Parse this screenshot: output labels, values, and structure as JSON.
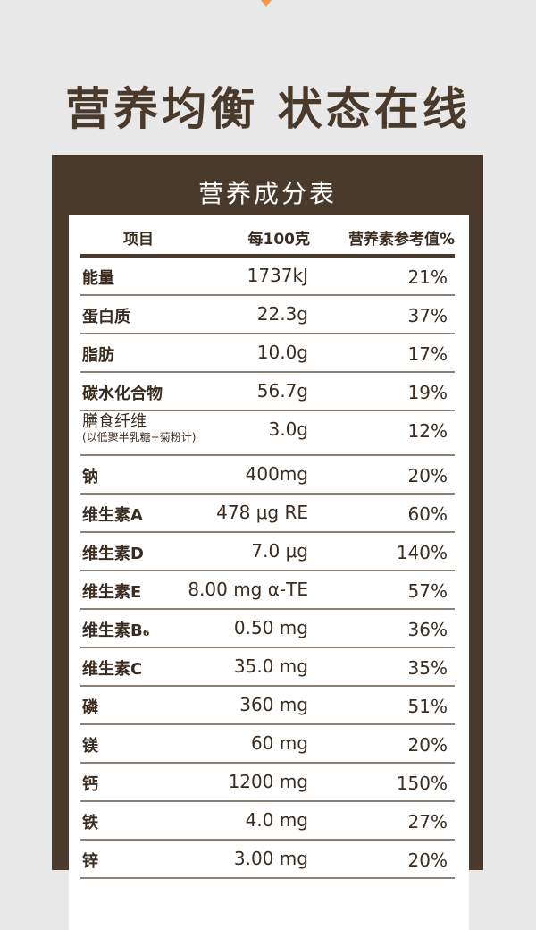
{
  "colors": {
    "background": "#e8e8e8",
    "brand_brown": "#4a3a2b",
    "accent_orange": "#f39a4a"
  },
  "headline": "营养均衡 状态在线",
  "panel_title": "营养成分表",
  "columns": [
    "项目",
    "每100克",
    "营养素参考值%"
  ],
  "rows": [
    {
      "name": "能量",
      "amount": "1737kJ",
      "nrv": "21%"
    },
    {
      "name": "蛋白质",
      "amount": "22.3g",
      "nrv": "37%"
    },
    {
      "name": "脂肪",
      "amount": "10.0g",
      "nrv": "17%"
    },
    {
      "name": "碳水化合物",
      "amount": "56.7g",
      "nrv": "19%"
    },
    {
      "name": "膳食纤维",
      "note": "(以低聚半乳糖+菊粉计)",
      "amount": "3.0g",
      "nrv": "12%"
    },
    {
      "name": "钠",
      "amount": "400mg",
      "nrv": "20%"
    },
    {
      "name": "维生素A",
      "amount": "478 μg RE",
      "nrv": "60%"
    },
    {
      "name": "维生素D",
      "amount": "7.0 μg",
      "nrv": "140%"
    },
    {
      "name": "维生素E",
      "amount": "8.00 mg  α-TE",
      "nrv": "57%"
    },
    {
      "name": "维生素B₆",
      "amount": "0.50 mg",
      "nrv": "36%"
    },
    {
      "name": "维生素C",
      "amount": "35.0 mg",
      "nrv": "35%"
    },
    {
      "name": "磷",
      "amount": "360 mg",
      "nrv": "51%"
    },
    {
      "name": "镁",
      "amount": "60 mg",
      "nrv": "20%"
    },
    {
      "name": "钙",
      "amount": "1200 mg",
      "nrv": "150%"
    },
    {
      "name": "铁",
      "amount": "4.0 mg",
      "nrv": "27%"
    },
    {
      "name": "锌",
      "amount": "3.00 mg",
      "nrv": "20%"
    }
  ]
}
